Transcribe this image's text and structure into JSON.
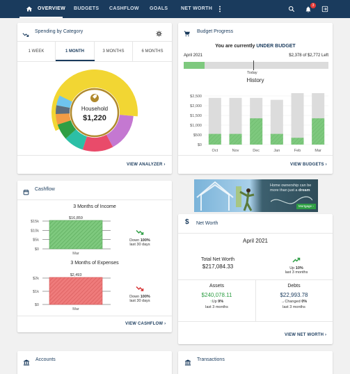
{
  "nav": {
    "items": [
      "OVERVIEW",
      "BUDGETS",
      "CASHFLOW",
      "GOALS",
      "NET WORTH"
    ],
    "notification_count": "3",
    "icons": [
      "home-icon",
      "more-vert-icon",
      "search-icon",
      "bell-icon",
      "logout-icon"
    ]
  },
  "spending": {
    "title": "Spending by Category",
    "tabs": [
      "1 WEEK",
      "1 MONTH",
      "3 MONTHS",
      "6 MONTHS"
    ],
    "active_tab": "1 MONTH",
    "center_label": "Household",
    "center_value": "$1,220",
    "link": "VIEW ANALYZER",
    "segment_colors": [
      "#f2d633",
      "#c478d1",
      "#e94b6a",
      "#2cbfa6",
      "#2f9e44",
      "#f39c45",
      "#5d6d7e",
      "#6fc4ee"
    ]
  },
  "budget": {
    "title": "Budget Progress",
    "status_prefix": "You are currently",
    "status_value": "UNDER BUDGET",
    "month": "April 2021",
    "amount": "$2,378 of $2,772 Left",
    "progress": 0.142,
    "today_label": "Today",
    "history_title": "History",
    "link": "VIEW BUDGETS",
    "chart_data": {
      "type": "bar",
      "categories": [
        "Oct",
        "Nov",
        "Dec",
        "Jan",
        "Feb",
        "Mar"
      ],
      "series": [
        {
          "values": [
            2400,
            2400,
            2400,
            2300,
            2750,
            2750
          ]
        },
        {
          "values": [
            550,
            550,
            1350,
            550,
            350,
            1350
          ]
        }
      ],
      "y_ticks": [
        "$2,500",
        "$2,000",
        "$1,500",
        "$1,000",
        "$500",
        "$0"
      ],
      "ylim": [
        0,
        2500
      ]
    }
  },
  "ad": {
    "line1": "Home ownership can be",
    "line2_pre": "more than just a ",
    "line2_em": "dream",
    "button": "Mortgage"
  },
  "cashflow": {
    "title": "Cashflow",
    "income_title": "3 Months of Income",
    "expenses_title": "3 Months of Expenses",
    "income": {
      "chart_data": {
        "type": "bar",
        "categories": [
          "Mar"
        ],
        "values": [
          16859
        ],
        "value_label": "$16,859",
        "y_ticks": [
          "$15k",
          "$10k",
          "$5k",
          "$0"
        ],
        "ylim": [
          0,
          16859
        ]
      },
      "trend_word": "Down",
      "trend_value": "100%",
      "trend_period": "last 30 days"
    },
    "expenses": {
      "chart_data": {
        "type": "bar",
        "categories": [
          "Mar"
        ],
        "values": [
          2493
        ],
        "value_label": "$2,493",
        "y_ticks": [
          "$2k",
          "$1k",
          "$0"
        ],
        "ylim": [
          0,
          2493
        ]
      },
      "trend_word": "Down",
      "trend_value": "100%",
      "trend_period": "last 30 days"
    },
    "link": "VIEW CASHFLOW"
  },
  "networth": {
    "title": "Net Worth",
    "month": "April 2021",
    "total_label": "Total Net Worth",
    "total_value": "$217,084.33",
    "total_trend_word": "Up",
    "total_trend_value": "10%",
    "total_trend_period": "last 3 months",
    "assets_label": "Assets",
    "assets_value": "$240,078.11",
    "assets_trend_word": "Up",
    "assets_trend_value": "9%",
    "assets_trend_period": "last 3 months",
    "debts_label": "Debts",
    "debts_value": "$22,993.78",
    "debts_trend_word": "Changed",
    "debts_trend_value": "0%",
    "debts_trend_period": "last 3 months",
    "link": "VIEW NET WORTH"
  },
  "accounts": {
    "title": "Accounts"
  },
  "transactions": {
    "title": "Transactions"
  },
  "colors": {
    "navy": "#1a3b5d",
    "green": "#2e9e44",
    "bar_green": "#7ec97e",
    "bar_gray": "#dcdcdc",
    "red": "#d63031",
    "bar_red": "#ef7b7b"
  }
}
